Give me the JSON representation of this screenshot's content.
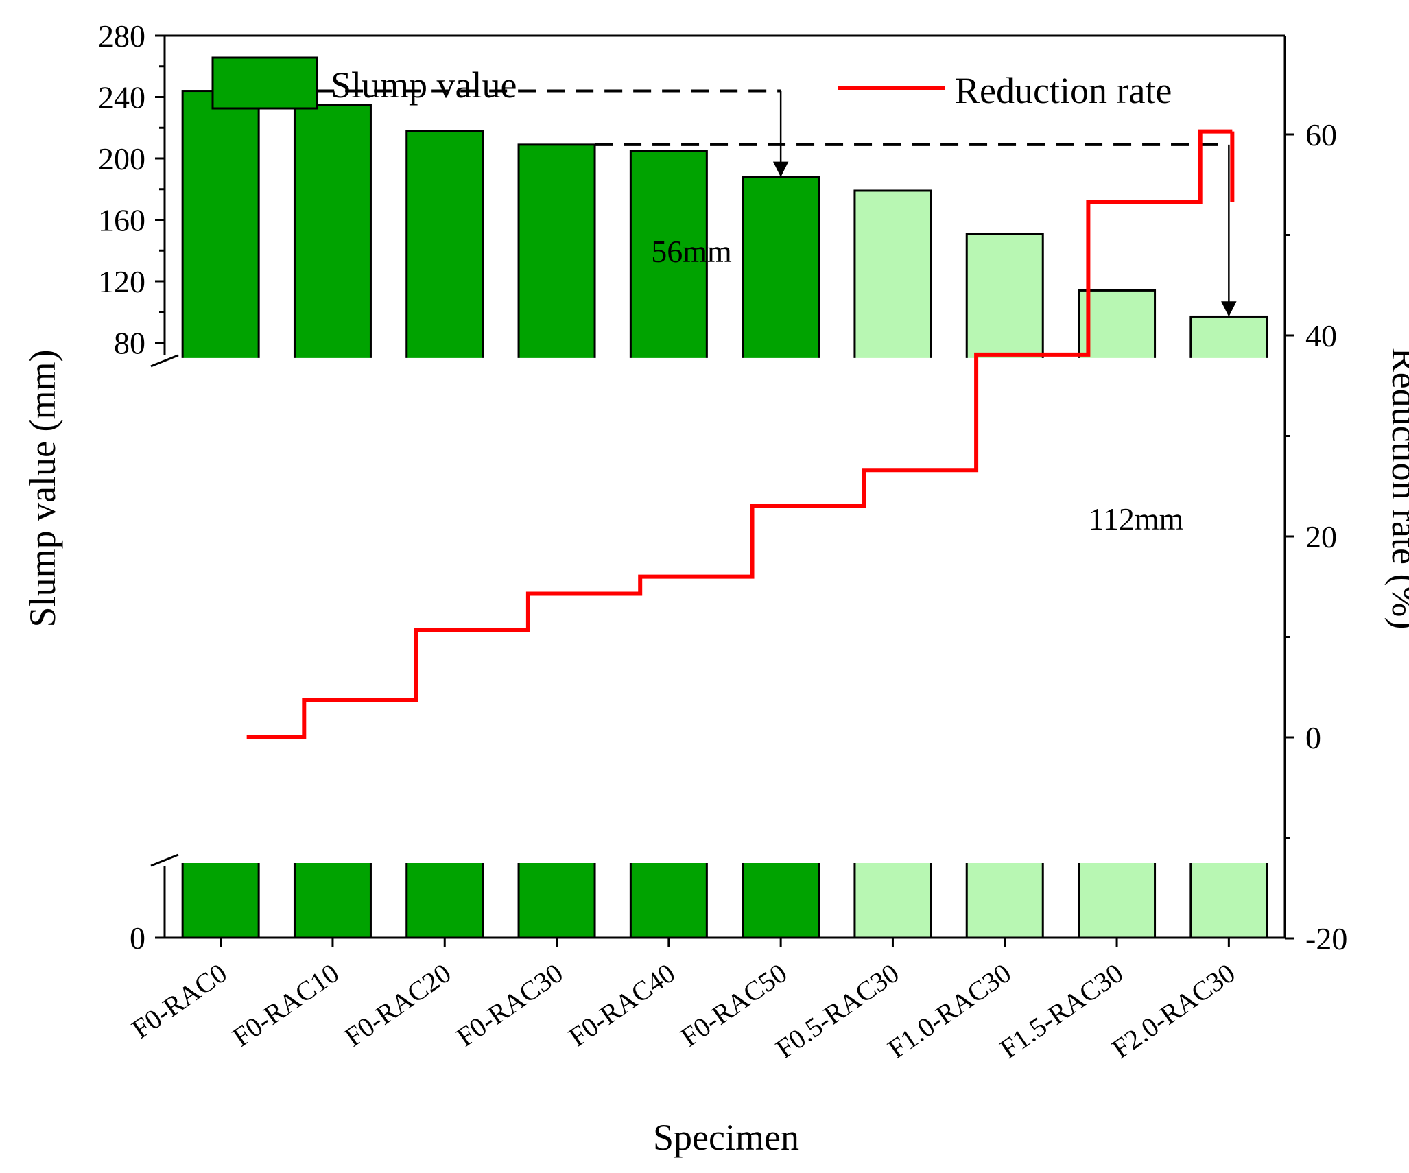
{
  "chart_data": {
    "type": "bar",
    "xlabel": "Specimen",
    "ylabel": "Slump value (mm)",
    "y2label": "Reduction rate (%)",
    "categories": [
      "F0-RAC0",
      "F0-RAC10",
      "F0-RAC20",
      "F0-RAC30",
      "F0-RAC40",
      "F0-RAC50",
      "F0.5-RAC30",
      "F1.0-RAC30",
      "F1.5-RAC30",
      "F2.0-RAC30"
    ],
    "series": [
      {
        "name": "Slump value",
        "type": "bar",
        "axis": "left",
        "values": [
          244,
          235,
          218,
          209,
          205,
          188,
          179,
          151,
          114,
          97
        ],
        "colors": [
          "#00a300",
          "#00a300",
          "#00a300",
          "#00a300",
          "#00a300",
          "#00a300",
          "#b8f7b3",
          "#b8f7b3",
          "#b8f7b3",
          "#b8f7b3"
        ]
      },
      {
        "name": "Reduction rate",
        "type": "step-line",
        "axis": "right",
        "color": "#ff0000",
        "values": [
          0,
          3.7,
          10.7,
          14.3,
          16.0,
          23.0,
          26.6,
          38.1,
          53.3,
          60.3
        ]
      }
    ],
    "y_ticks": [
      0,
      80,
      120,
      160,
      200,
      240,
      280
    ],
    "y_break": [
      65,
      70
    ],
    "ylim": [
      0,
      280
    ],
    "y2_ticks": [
      -20,
      0,
      20,
      40,
      60
    ],
    "y2lim": [
      -20,
      70
    ],
    "legend": {
      "slump_label": "Slump value",
      "rate_label": "Reduction rate",
      "position": "top"
    },
    "annotations": [
      {
        "text": "56mm",
        "from_category": 0,
        "to_category": 5,
        "from_value": 244,
        "to_value": 188
      },
      {
        "text": "112mm",
        "from_category": 3,
        "to_category": 9,
        "from_value": 209,
        "to_value": 97
      }
    ]
  }
}
